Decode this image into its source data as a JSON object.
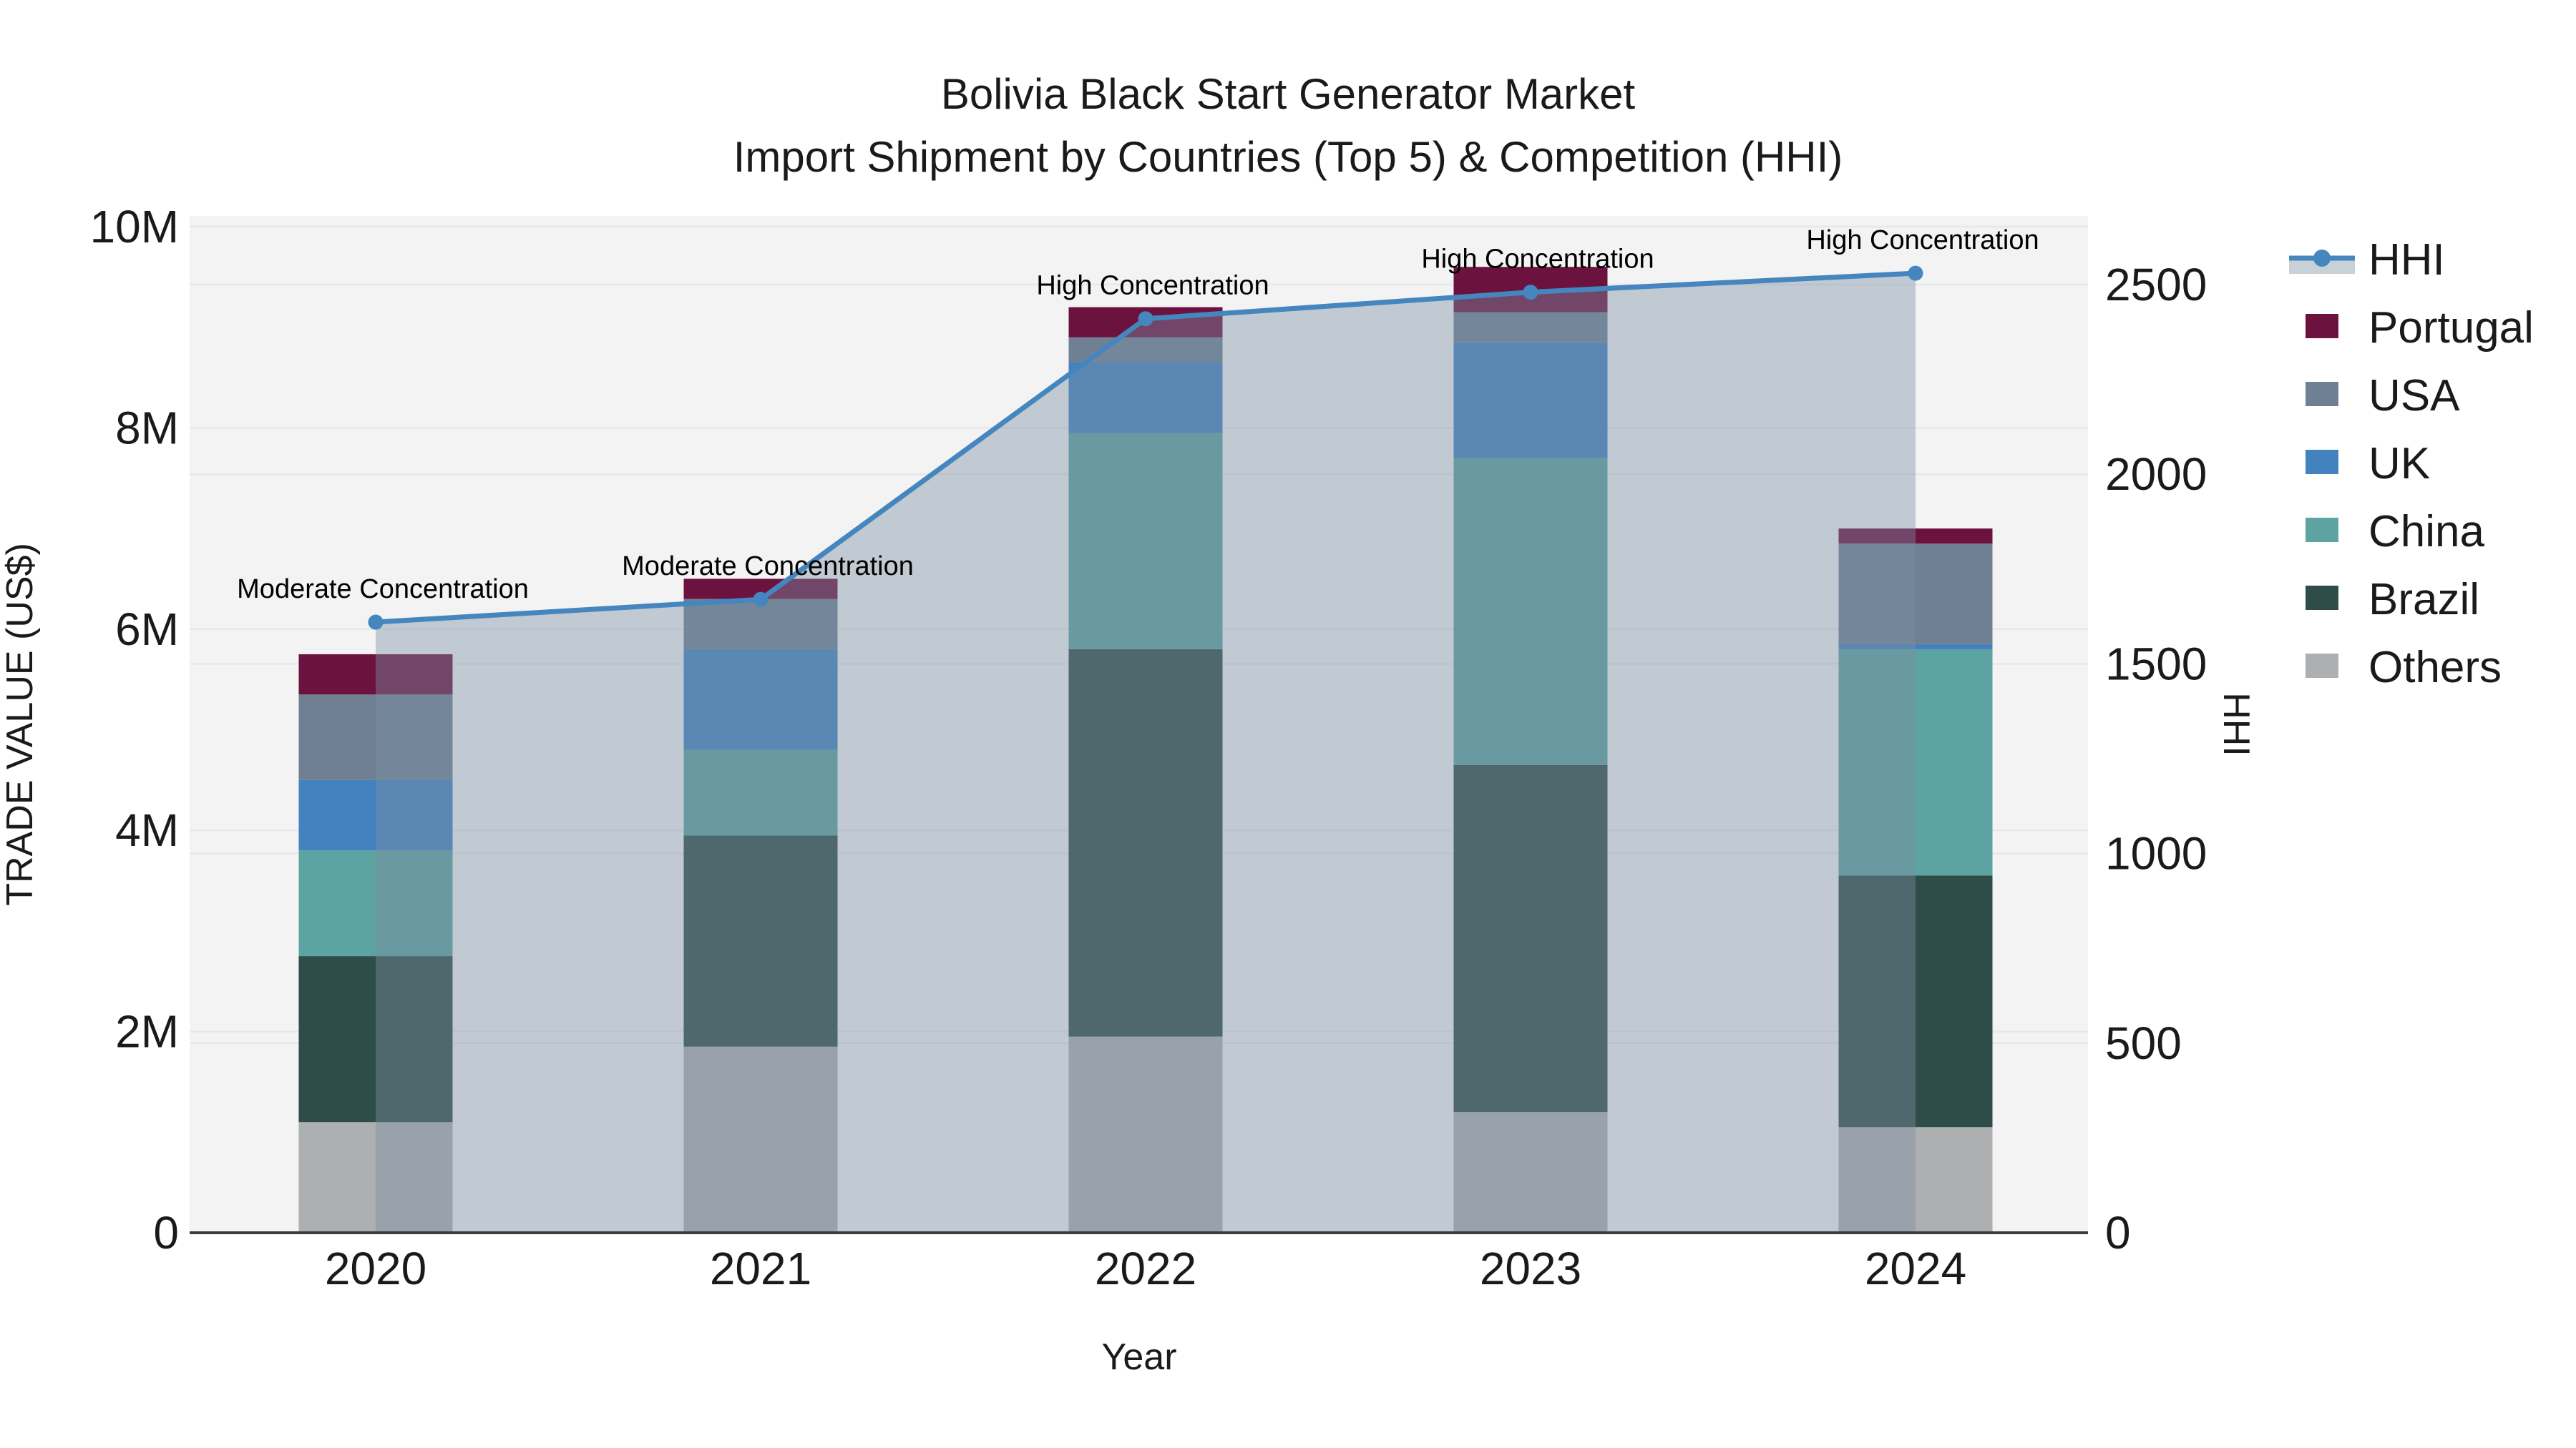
{
  "title": {
    "line1": "Bolivia Black Start Generator Market",
    "line2": "Import Shipment by Countries (Top 5) & Competition (HHI)"
  },
  "axes": {
    "x": {
      "title": "Year",
      "ticks": [
        "2020",
        "2021",
        "2022",
        "2023",
        "2024"
      ]
    },
    "y_left": {
      "title": "TRADE VALUE (US$)",
      "ticks": [
        "0",
        "2M",
        "4M",
        "6M",
        "8M",
        "10M"
      ],
      "range_usd": [
        0,
        10000000
      ]
    },
    "y_right": {
      "title": "HHI",
      "ticks": [
        "0",
        "500",
        "1000",
        "1500",
        "2000",
        "2500"
      ],
      "range": [
        0,
        2500
      ]
    }
  },
  "chart_data": {
    "type": "stacked-bar + line (dual axis)",
    "title": "Bolivia Black Start Generator Market — Import Shipment by Countries (Top 5) & Competition (HHI)",
    "categories": [
      "2020",
      "2021",
      "2022",
      "2023",
      "2024"
    ],
    "value_unit": "million US$",
    "stack_order_bottom_to_top": [
      "Others",
      "Brazil",
      "China",
      "UK",
      "USA",
      "Portugal"
    ],
    "series": [
      {
        "name": "Portugal",
        "color": "#6B123F",
        "values_musd": [
          0.4,
          0.2,
          0.3,
          0.45,
          0.15
        ]
      },
      {
        "name": "USA",
        "color": "#6F8095",
        "values_musd": [
          0.85,
          0.5,
          0.25,
          0.3,
          1.0
        ]
      },
      {
        "name": "UK",
        "color": "#4382BF",
        "values_musd": [
          0.7,
          1.0,
          0.7,
          1.15,
          0.05
        ]
      },
      {
        "name": "China",
        "color": "#5CA3A2",
        "values_musd": [
          1.05,
          0.85,
          2.15,
          3.05,
          2.25
        ]
      },
      {
        "name": "Brazil",
        "color": "#2E4D48",
        "values_musd": [
          1.65,
          2.1,
          3.85,
          3.45,
          2.5
        ]
      },
      {
        "name": "Others",
        "color": "#AEAFB0",
        "values_musd": [
          1.1,
          1.85,
          1.95,
          1.2,
          1.05
        ]
      }
    ],
    "bar_totals_musd": [
      5.75,
      6.5,
      9.2,
      9.6,
      7.0
    ],
    "hhi_line": {
      "name": "HHI",
      "values": [
        1610,
        1670,
        2410,
        2480,
        2530
      ],
      "color": "#4586BE",
      "area_fill": "rgba(124,142,162,0.42)"
    },
    "annotations": [
      {
        "year": "2020",
        "text": "Moderate Concentration"
      },
      {
        "year": "2021",
        "text": "Moderate Concentration"
      },
      {
        "year": "2022",
        "text": "High Concentration"
      },
      {
        "year": "2023",
        "text": "High Concentration"
      },
      {
        "year": "2024",
        "text": "High Concentration"
      }
    ],
    "legend_order": [
      "HHI",
      "Portugal",
      "USA",
      "UK",
      "China",
      "Brazil",
      "Others"
    ],
    "layout_hints": {
      "plot_bg": "#F3F3F4",
      "grid_color": "#E7E8EA",
      "axis_line_color": "#3D3D3D",
      "grid": "on (both left 2M steps and right 500 steps)",
      "legend_position": "right"
    }
  }
}
